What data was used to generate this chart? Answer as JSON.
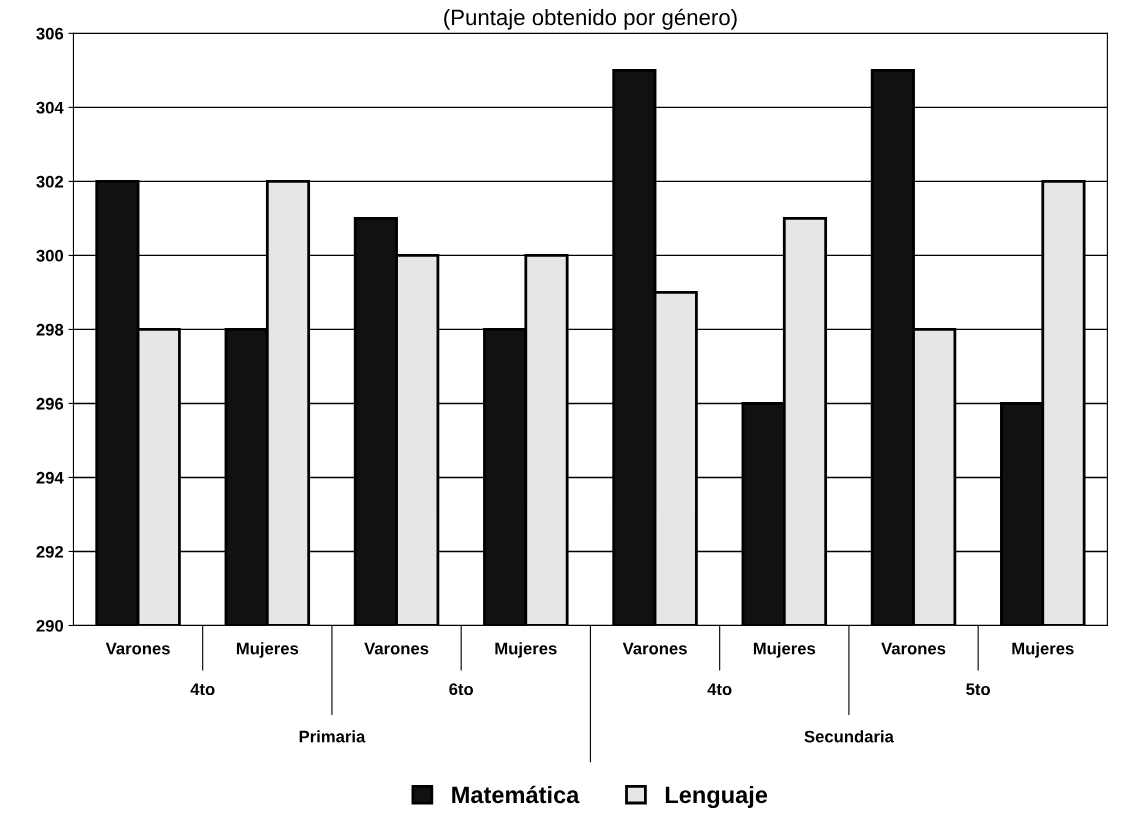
{
  "chart_data": {
    "type": "bar",
    "title": "(Puntaje obtenido por género)",
    "categories": [
      "Varones",
      "Mujeres",
      "Varones",
      "Mujeres",
      "Varones",
      "Mujeres",
      "Varones",
      "Mujeres"
    ],
    "series": [
      {
        "name": "Matemática",
        "color": "#111111",
        "values": [
          302,
          298,
          301,
          298,
          305,
          296,
          305,
          296
        ]
      },
      {
        "name": "Lenguaje",
        "color": "#e6e6e6",
        "values": [
          298,
          302,
          300,
          300,
          299,
          301,
          298,
          302
        ]
      }
    ],
    "annotations": [
      "4to",
      "6to",
      "4to",
      "5to",
      "Primaria",
      "Secundaria"
    ],
    "ylim": [
      290,
      306
    ],
    "yticks": [
      290,
      292,
      294,
      296,
      298,
      300,
      302,
      304,
      306
    ],
    "grid": "y",
    "legend": "bottom"
  }
}
